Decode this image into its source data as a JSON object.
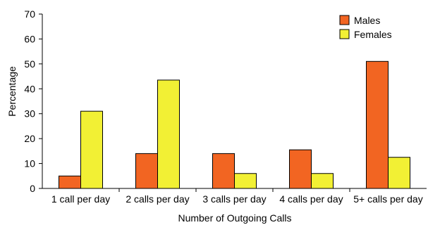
{
  "chart_data": {
    "type": "bar",
    "categories": [
      "1 call per day",
      "2 calls per day",
      "3 calls per day",
      "4 calls per day",
      "5+ calls per day"
    ],
    "series": [
      {
        "name": "Males",
        "values": [
          5,
          14,
          14,
          15.5,
          51
        ],
        "color": "#f26522"
      },
      {
        "name": "Females",
        "values": [
          31,
          43.5,
          6,
          6,
          12.5
        ],
        "color": "#f2f034"
      }
    ],
    "title": "",
    "xlabel": "Number of Outgoing Calls",
    "ylabel": "Percentage",
    "ylim": [
      0,
      70
    ],
    "yticks": [
      "0",
      "10",
      "20",
      "30",
      "40",
      "50",
      "60",
      "70"
    ],
    "grid": false,
    "legend_position": "top-right"
  }
}
